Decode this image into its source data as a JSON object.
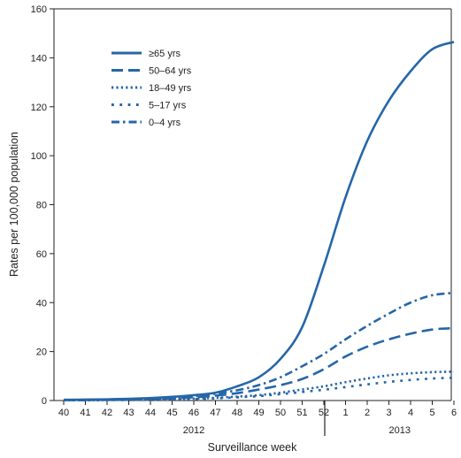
{
  "chart_data": {
    "type": "line",
    "title": "",
    "xlabel": "Surveillance week",
    "ylabel": "Rates per 100,000 population",
    "ylim": [
      0,
      160
    ],
    "yticks": [
      0,
      20,
      40,
      60,
      80,
      100,
      120,
      140,
      160
    ],
    "categories": [
      "40",
      "41",
      "42",
      "43",
      "44",
      "45",
      "46",
      "47",
      "48",
      "49",
      "50",
      "51",
      "52",
      "1",
      "2",
      "3",
      "4",
      "5",
      "6"
    ],
    "year_groups": [
      {
        "label": "2012",
        "from": "40",
        "to": "52"
      },
      {
        "label": "2013",
        "from": "1",
        "to": "6"
      }
    ],
    "grid": false,
    "legend_position": "top-left",
    "color": "#2566a8",
    "series": [
      {
        "name": "≥65 yrs",
        "dash": "solid",
        "values": [
          0.3,
          0.4,
          0.5,
          0.7,
          1.0,
          1.5,
          2.2,
          3.2,
          5.8,
          9.5,
          17.0,
          30.0,
          55.0,
          83.0,
          106.0,
          122.5,
          134.5,
          143.5,
          146.5
        ]
      },
      {
        "name": "50–64 yrs",
        "dash": "dash",
        "values": [
          0.2,
          0.2,
          0.3,
          0.4,
          0.6,
          0.9,
          1.3,
          2.0,
          3.0,
          4.5,
          6.3,
          8.8,
          12.8,
          18.0,
          22.0,
          25.0,
          27.3,
          29.0,
          29.6
        ]
      },
      {
        "name": "18–49 yrs",
        "dash": "dot",
        "values": [
          0.1,
          0.1,
          0.2,
          0.3,
          0.4,
          0.6,
          0.8,
          1.1,
          1.6,
          2.2,
          3.2,
          4.5,
          5.8,
          7.5,
          9.0,
          10.3,
          11.1,
          11.6,
          11.8
        ]
      },
      {
        "name": "5–17 yrs",
        "dash": "sparse-dot",
        "values": [
          0.1,
          0.1,
          0.2,
          0.2,
          0.3,
          0.4,
          0.6,
          0.9,
          1.3,
          1.8,
          2.6,
          3.5,
          4.4,
          5.5,
          6.6,
          7.6,
          8.4,
          9.0,
          9.3
        ]
      },
      {
        "name": "0–4 yrs",
        "dash": "dashdot",
        "values": [
          0.2,
          0.3,
          0.4,
          0.5,
          0.8,
          1.2,
          1.8,
          2.8,
          4.2,
          6.3,
          9.5,
          14.0,
          19.0,
          25.0,
          30.5,
          35.5,
          40.0,
          43.0,
          44.0
        ]
      }
    ]
  }
}
